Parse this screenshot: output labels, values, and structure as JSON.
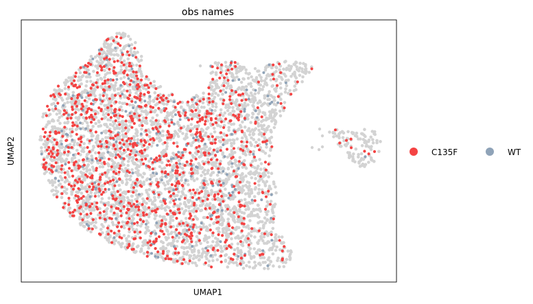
{
  "chart_data": {
    "type": "scatter",
    "title": "obs names",
    "xlabel": "UMAP1",
    "ylabel": "UMAP2",
    "xticks": [],
    "yticks": [],
    "grid": false,
    "legend_position": "right",
    "background_color": "#d3d3d3",
    "series": [
      {
        "name": "C135F",
        "color": "#f44343"
      },
      {
        "name": "WT",
        "color": "#8fa3b8"
      }
    ]
  }
}
